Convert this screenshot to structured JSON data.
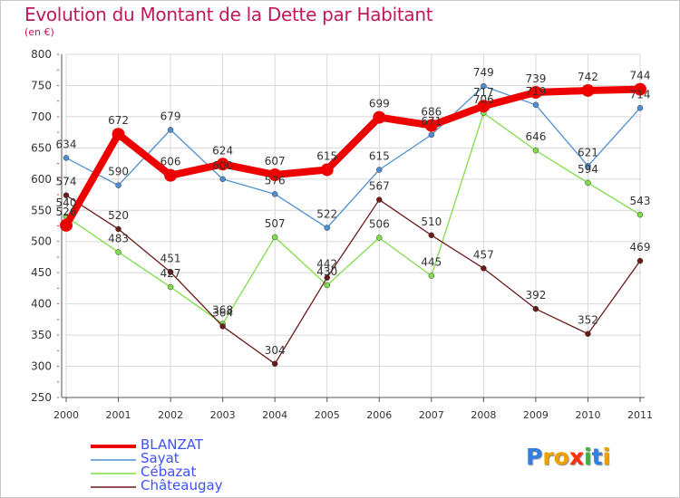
{
  "header": {
    "title": "Evolution du Montant de la Dette par Habitant",
    "subtitle": "(en €)"
  },
  "chart_data": {
    "type": "line",
    "title": "Evolution du Montant de la Dette par Habitant",
    "subtitle": "(en €)",
    "xlabel": "",
    "ylabel": "",
    "categories": [
      "2000",
      "2001",
      "2002",
      "2003",
      "2004",
      "2005",
      "2006",
      "2007",
      "2008",
      "2009",
      "2010",
      "2011"
    ],
    "ylim": [
      250,
      800
    ],
    "yticks": [
      250,
      300,
      350,
      400,
      450,
      500,
      550,
      600,
      650,
      700,
      750,
      800
    ],
    "grid": true,
    "legend_position": "bottom-left",
    "series": [
      {
        "name": "BLANZAT",
        "color": "#ee0000",
        "values": [
          526,
          672,
          606,
          624,
          607,
          615,
          699,
          686,
          717,
          739,
          742,
          744
        ],
        "labels": [
          "526",
          "672",
          "606",
          "624",
          "607",
          "615",
          "699",
          "686",
          "717",
          "739",
          "742",
          "744"
        ]
      },
      {
        "name": "Sayat",
        "color": "#4f8fcf",
        "values": [
          634,
          590,
          679,
          600,
          576,
          522,
          615,
          671,
          749,
          719,
          621,
          714
        ],
        "labels": [
          "634",
          "590",
          "679",
          "600",
          "576",
          "522",
          "615",
          "671",
          "749",
          "719",
          "621",
          "714"
        ]
      },
      {
        "name": "Cébazat",
        "color": "#80dd4a",
        "values": [
          540,
          483,
          427,
          368,
          507,
          430,
          506,
          445,
          706,
          646,
          594,
          543
        ],
        "labels": [
          "540",
          "483",
          "427",
          "368",
          "507",
          "430",
          "506",
          "445",
          "706",
          "646",
          "594",
          "543"
        ]
      },
      {
        "name": "Châteaugay",
        "color": "#6b1a1a",
        "values": [
          574,
          520,
          451,
          364,
          304,
          442,
          567,
          510,
          457,
          392,
          352,
          469
        ],
        "labels": [
          "574",
          "520",
          "451",
          "364",
          "304",
          "442",
          "567",
          "510",
          "457",
          "392",
          "352",
          "469"
        ]
      }
    ]
  },
  "brand": {
    "letters": [
      "P",
      "r",
      "o",
      "x",
      "i",
      "t",
      "i"
    ],
    "colors": [
      "#2f80e0",
      "#f0a000",
      "#f0a000",
      "#ff3000",
      "#3cb43c",
      "#2f80e0",
      "#f0a000"
    ]
  }
}
